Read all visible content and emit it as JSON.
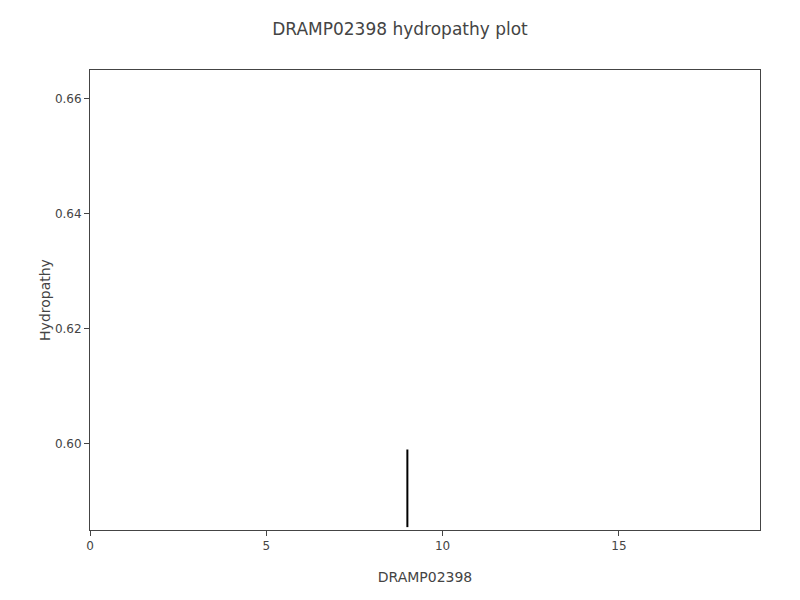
{
  "chart_data": {
    "type": "line",
    "title": "DRAMP02398 hydropathy plot",
    "xlabel": "DRAMP02398",
    "ylabel": "Hydropathy",
    "x": [
      9.0,
      9.0
    ],
    "values": [
      0.599,
      0.5855
    ],
    "color": "#000000",
    "xlim": [
      0,
      19
    ],
    "ylim": [
      0.585,
      0.665
    ],
    "xticks": [
      0,
      5,
      10,
      15
    ],
    "yticks": [
      {
        "value": 0.6,
        "label": "0.60"
      },
      {
        "value": 0.62,
        "label": "0.62"
      },
      {
        "value": 0.64,
        "label": "0.64"
      },
      {
        "value": 0.66,
        "label": "0.66"
      }
    ],
    "grid": false
  }
}
